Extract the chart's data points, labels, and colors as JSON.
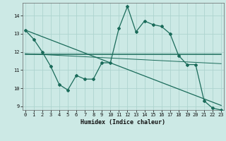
{
  "xlabel": "Humidex (Indice chaleur)",
  "bg_color": "#cce9e5",
  "grid_color": "#aed4cf",
  "line_color": "#1a6b5a",
  "x_data": [
    0,
    1,
    2,
    3,
    4,
    5,
    6,
    7,
    8,
    9,
    10,
    11,
    12,
    13,
    14,
    15,
    16,
    17,
    18,
    19,
    20,
    21,
    22,
    23
  ],
  "y_main": [
    13.2,
    12.7,
    12.0,
    11.2,
    10.2,
    9.9,
    10.7,
    10.5,
    10.5,
    11.4,
    11.4,
    13.3,
    14.5,
    13.1,
    13.7,
    13.5,
    13.4,
    13.0,
    11.8,
    11.3,
    11.3,
    9.3,
    8.9,
    8.8
  ],
  "ylim": [
    8.8,
    14.7
  ],
  "xlim": [
    -0.3,
    23.3
  ],
  "yticks": [
    9,
    10,
    11,
    12,
    13,
    14
  ],
  "xticks": [
    0,
    1,
    2,
    3,
    4,
    5,
    6,
    7,
    8,
    9,
    10,
    11,
    12,
    13,
    14,
    15,
    16,
    17,
    18,
    19,
    20,
    21,
    22,
    23
  ],
  "marker": "D",
  "marker_size": 2.0,
  "line_width": 0.9,
  "trend1_x": [
    0,
    23
  ],
  "trend1_y": [
    11.85,
    11.85
  ],
  "trend2_x": [
    0,
    23
  ],
  "trend2_y": [
    13.2,
    9.05
  ],
  "trend3_x": [
    0,
    23
  ],
  "trend3_y": [
    11.9,
    11.35
  ],
  "tick_fontsize": 5.0,
  "xlabel_fontsize": 6.0
}
